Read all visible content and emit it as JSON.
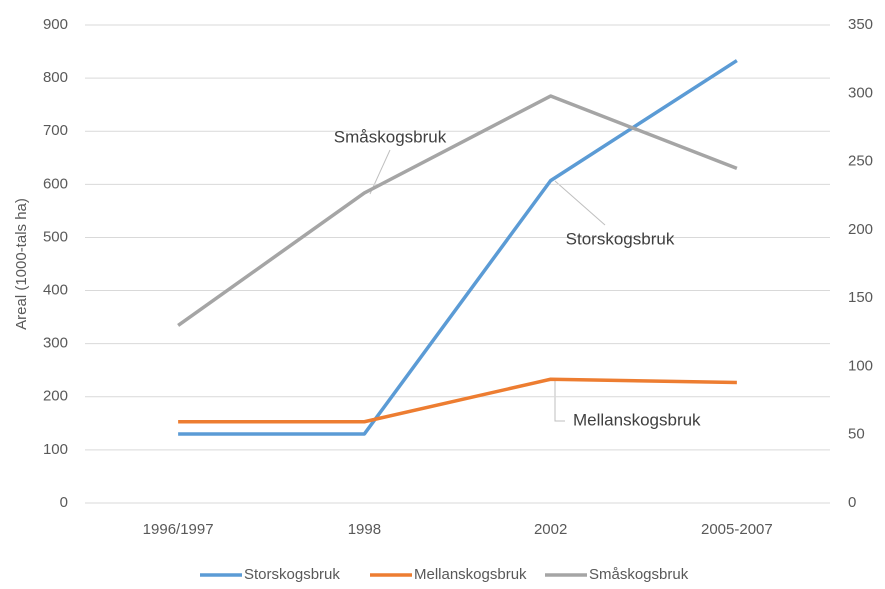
{
  "chart_data": {
    "type": "line",
    "y_label": "Areal (1000-tals ha)",
    "categories": [
      "1996/1997",
      "1998",
      "2002",
      "2005-2007"
    ],
    "series": [
      {
        "name": "Storskogsbruk",
        "color": "#5b9bd5",
        "values": [
          130,
          130,
          607,
          833
        ]
      },
      {
        "name": "Mellanskogsbruk",
        "color": "#ed7d31",
        "values": [
          153,
          153,
          233,
          227
        ]
      },
      {
        "name": "Småskogsbruk",
        "color": "#a5a5a5",
        "axis": "y2",
        "values": [
          130,
          227,
          298,
          245
        ]
      }
    ],
    "ylim": [
      0,
      900
    ],
    "yticks": [
      0,
      100,
      200,
      300,
      400,
      500,
      600,
      700,
      800,
      900
    ],
    "y2lim": [
      0,
      350
    ],
    "y2ticks": [
      0,
      50,
      100,
      150,
      200,
      250,
      300,
      350
    ],
    "grid": true,
    "legend": "bottom",
    "annotations": [
      "Småskogsbruk",
      "Storskogsbruk",
      "Mellanskogsbruk"
    ]
  }
}
